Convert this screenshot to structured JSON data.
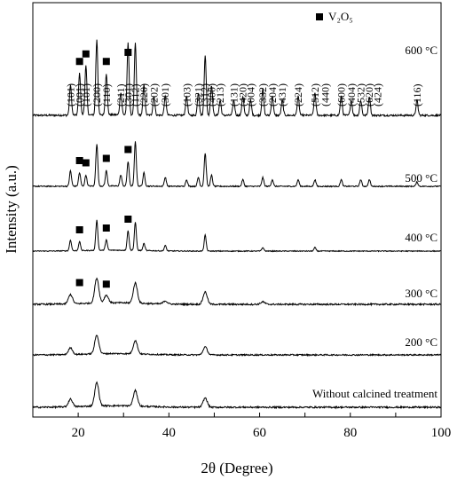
{
  "chart_data": {
    "type": "line",
    "xlabel": "2θ (Degree)",
    "ylabel": "Intensity (a.u.)",
    "xlim": [
      10,
      100
    ],
    "x_ticks": [
      20,
      40,
      60,
      80,
      100
    ],
    "legend": {
      "symbol": "■",
      "label": "V₂O₅",
      "placement": "top-center"
    },
    "series": [
      {
        "name": "600 °C",
        "peaks": [
          [
            18.3,
            0.4
          ],
          [
            20.3,
            0.55
          ],
          [
            21.7,
            0.65
          ],
          [
            24.1,
            1.0
          ],
          [
            26.2,
            0.55
          ],
          [
            29.4,
            0.3
          ],
          [
            31.0,
            0.95
          ],
          [
            32.6,
            0.95
          ],
          [
            34.5,
            0.4
          ],
          [
            36.7,
            0.25
          ],
          [
            39.2,
            0.25
          ],
          [
            43.9,
            0.25
          ],
          [
            46.5,
            0.3
          ],
          [
            48.0,
            0.8
          ],
          [
            49.4,
            0.4
          ],
          [
            51.3,
            0.2
          ],
          [
            54.3,
            0.2
          ],
          [
            56.3,
            0.25
          ],
          [
            58.0,
            0.2
          ],
          [
            60.7,
            0.35
          ],
          [
            62.8,
            0.25
          ],
          [
            65.0,
            0.2
          ],
          [
            68.5,
            0.25
          ],
          [
            72.2,
            0.3
          ],
          [
            78.0,
            0.25
          ],
          [
            80.2,
            0.2
          ],
          [
            82.3,
            0.2
          ],
          [
            84.2,
            0.25
          ],
          [
            94.7,
            0.2
          ]
        ]
      },
      {
        "name": "500 °C",
        "peaks": [
          [
            18.3,
            0.35
          ],
          [
            20.3,
            0.3
          ],
          [
            21.7,
            0.25
          ],
          [
            24.1,
            0.95
          ],
          [
            26.2,
            0.35
          ],
          [
            29.4,
            0.25
          ],
          [
            31.0,
            0.55
          ],
          [
            32.6,
            1.0
          ],
          [
            34.5,
            0.3
          ],
          [
            39.2,
            0.2
          ],
          [
            43.9,
            0.15
          ],
          [
            46.5,
            0.2
          ],
          [
            48.0,
            0.75
          ],
          [
            49.4,
            0.25
          ],
          [
            56.3,
            0.15
          ],
          [
            60.7,
            0.2
          ],
          [
            62.8,
            0.15
          ],
          [
            68.5,
            0.15
          ],
          [
            72.2,
            0.15
          ],
          [
            78.0,
            0.15
          ],
          [
            82.3,
            0.15
          ],
          [
            84.2,
            0.15
          ],
          [
            94.7,
            0.1
          ]
        ]
      },
      {
        "name": "400 °C",
        "peaks": [
          [
            18.3,
            0.3
          ],
          [
            20.3,
            0.25
          ],
          [
            24.1,
            0.85
          ],
          [
            26.2,
            0.3
          ],
          [
            31.0,
            0.55
          ],
          [
            32.6,
            0.8
          ],
          [
            34.5,
            0.2
          ],
          [
            39.2,
            0.15
          ],
          [
            48.0,
            0.45
          ],
          [
            60.7,
            0.1
          ],
          [
            72.2,
            0.1
          ]
        ]
      },
      {
        "name": "300 °C",
        "peaks": [
          [
            18.3,
            0.3
          ],
          [
            24.1,
            0.8
          ],
          [
            26.2,
            0.25
          ],
          [
            32.6,
            0.65
          ],
          [
            39.2,
            0.1
          ],
          [
            48.0,
            0.4
          ],
          [
            60.7,
            0.08
          ]
        ]
      },
      {
        "name": "200 °C",
        "peaks": [
          [
            18.3,
            0.25
          ],
          [
            24.1,
            0.7
          ],
          [
            32.6,
            0.5
          ],
          [
            48.0,
            0.3
          ]
        ]
      },
      {
        "name": "Without calcined treatment",
        "peaks": [
          [
            18.3,
            0.25
          ],
          [
            24.1,
            0.75
          ],
          [
            32.6,
            0.5
          ],
          [
            48.0,
            0.3
          ]
        ]
      }
    ],
    "v2o5_markers": {
      "600 °C": [
        20.3,
        21.7,
        26.2,
        31.0
      ],
      "500 °C": [
        20.3,
        21.7,
        26.2,
        31.0
      ],
      "400 °C": [
        20.3,
        26.2,
        31.0
      ],
      "300 °C": [
        20.3,
        26.2
      ]
    },
    "hkl_labels": [
      [
        "(101)",
        18.3
      ],
      [
        "(001)",
        20.3
      ],
      [
        "(101)",
        21.7
      ],
      [
        "(200)",
        24.1
      ],
      [
        "(110)",
        26.2
      ],
      [
        "(211)",
        29.4
      ],
      [
        "(301)",
        31.0
      ],
      [
        "(112)",
        32.6
      ],
      [
        "(220)",
        34.5
      ],
      [
        "(202)",
        36.7
      ],
      [
        "(301)",
        39.2
      ],
      [
        "(103)",
        43.9
      ],
      [
        "(321)",
        46.5
      ],
      [
        "(312)",
        48.0
      ],
      [
        "(400)",
        49.4
      ],
      [
        "(213)",
        51.3
      ],
      [
        "(131)",
        54.3
      ],
      [
        "(420)",
        56.3
      ],
      [
        "(004)",
        58.0
      ],
      [
        "(332)",
        60.7
      ],
      [
        "(204)",
        62.8
      ],
      [
        "(431)",
        65.0
      ],
      [
        "(224)",
        68.5
      ],
      [
        "(512)",
        72.2
      ],
      [
        "(440)",
        74.5
      ],
      [
        "(600)",
        78.0
      ],
      [
        "(404)",
        80.2
      ],
      [
        "(532)",
        82.3
      ],
      [
        "(620)",
        84.2
      ],
      [
        "(424)",
        86.0
      ],
      [
        "(116)",
        94.7
      ]
    ]
  }
}
